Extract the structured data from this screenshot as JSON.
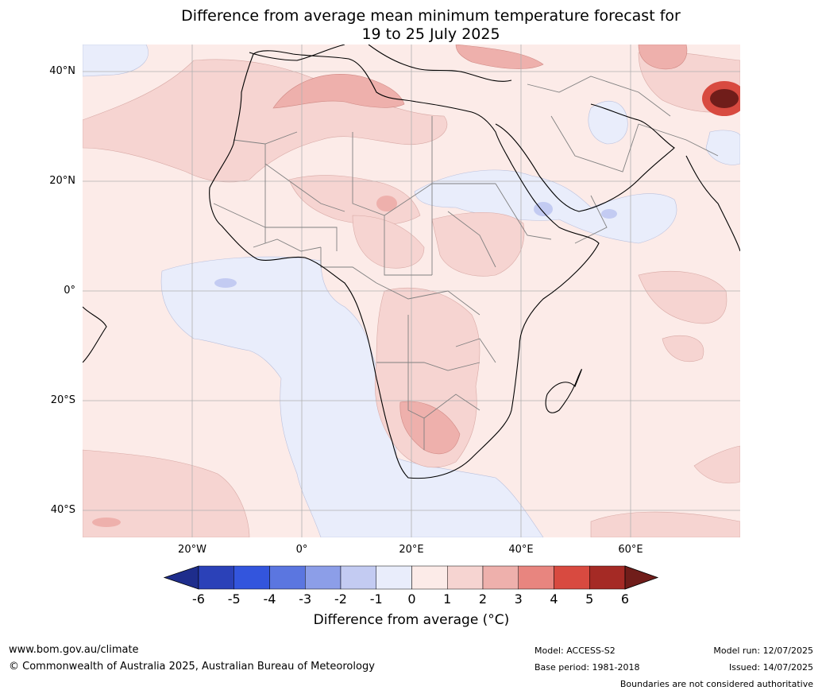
{
  "title_line1": "Difference from average mean minimum temperature forecast for",
  "title_line2": "19 to 25 July 2025",
  "lat_labels": [
    "40°N",
    "20°N",
    "0°",
    "20°S",
    "40°S"
  ],
  "lon_labels": [
    "20°W",
    "0°",
    "20°E",
    "40°E",
    "60°E"
  ],
  "colorbar": {
    "ticks": [
      "-6",
      "-5",
      "-4",
      "-3",
      "-2",
      "-1",
      "0",
      "1",
      "2",
      "3",
      "4",
      "5",
      "6"
    ],
    "colors": [
      "#1e2d8c",
      "#2b41b8",
      "#3355dd",
      "#5b76e0",
      "#8c9ee8",
      "#c3cbf2",
      "#e9edfb",
      "#fcebe8",
      "#f6d4d1",
      "#eeb0ac",
      "#e8857f",
      "#d84a40",
      "#a52a25",
      "#701d1a"
    ],
    "label": "Difference from average ($^\\circ$C)"
  },
  "legend_label": "Difference from average (°C)",
  "footer": {
    "website": "www.bom.gov.au/climate",
    "copyright": "© Commonwealth of Australia 2025, Australian Bureau of Meteorology",
    "model": "Model: ACCESS-S2",
    "base_period": "Base period: 1981-2018",
    "model_run": "Model run: 12/07/2025",
    "issued": "Issued: 14/07/2025",
    "disclaimer": "Boundaries are not considered authoritative"
  }
}
